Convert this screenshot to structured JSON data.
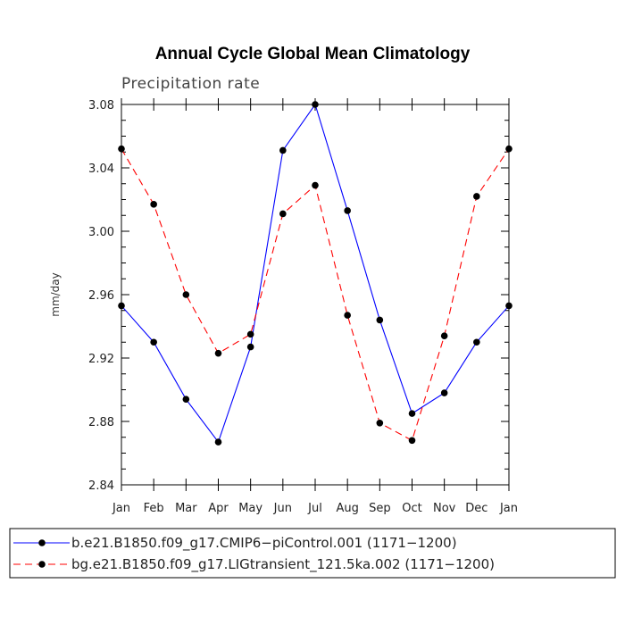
{
  "chart_data": {
    "type": "line",
    "title": "Annual Cycle Global Mean Climatology",
    "subtitle": "Precipitation rate",
    "xlabel": "",
    "ylabel": "mm/day",
    "categories": [
      "Jan",
      "Feb",
      "Mar",
      "Apr",
      "May",
      "Jun",
      "Jul",
      "Aug",
      "Sep",
      "Oct",
      "Nov",
      "Dec",
      "Jan"
    ],
    "ylim": [
      2.84,
      3.08
    ],
    "yticks": [
      2.84,
      2.88,
      2.92,
      2.96,
      3.0,
      3.04,
      3.08
    ],
    "ytick_labels": [
      "2.84",
      "2.88",
      "2.92",
      "2.96",
      "3.00",
      "3.04",
      "3.08"
    ],
    "grid": false,
    "legend_position": "bottom",
    "series": [
      {
        "name": "b.e21.B1850.f09_g17.CMIP6−piControl.001 (1171−1200)",
        "color": "#0000ff",
        "style": "solid",
        "values": [
          2.953,
          2.93,
          2.894,
          2.867,
          2.927,
          3.051,
          3.08,
          3.013,
          2.944,
          2.885,
          2.898,
          2.93,
          2.953
        ]
      },
      {
        "name": "bg.e21.B1850.f09_g17.LIGtransient_121.5ka.002 (1171−1200)",
        "color": "#ff0000",
        "style": "dashed",
        "values": [
          3.052,
          3.017,
          2.96,
          2.923,
          2.935,
          3.011,
          3.029,
          2.947,
          2.879,
          2.868,
          2.934,
          3.022,
          3.052
        ]
      }
    ]
  }
}
